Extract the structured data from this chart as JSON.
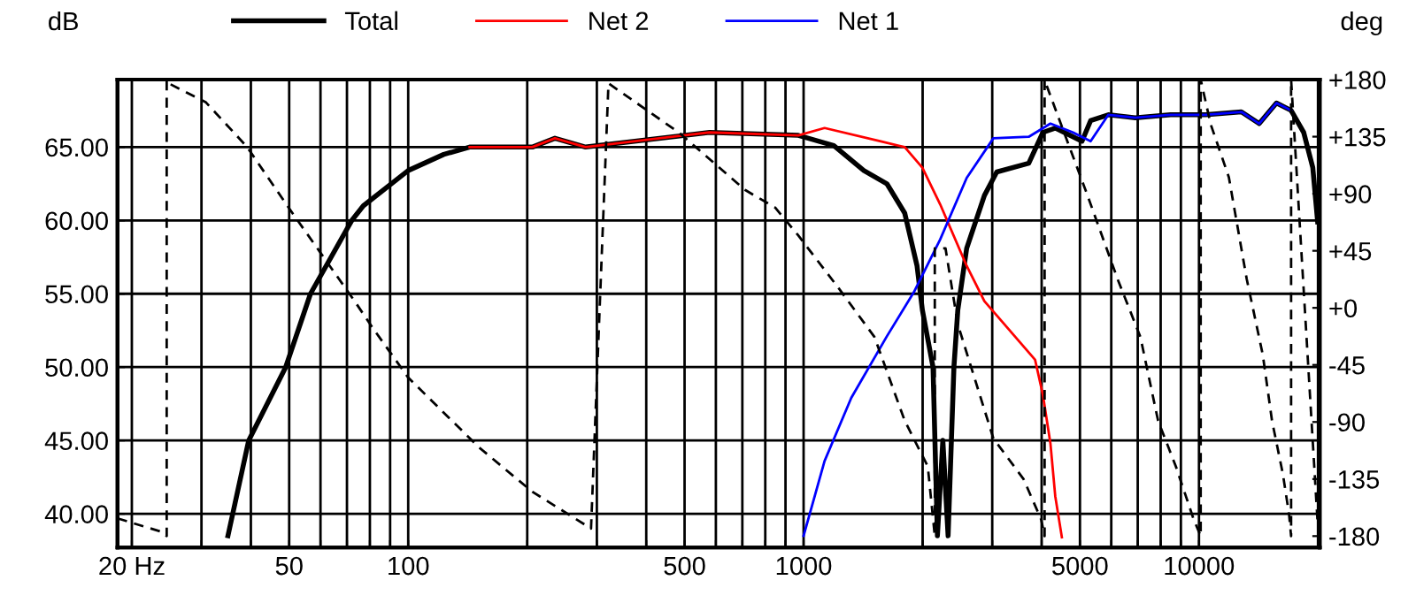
{
  "chart_data": {
    "type": "line",
    "xlabel": null,
    "ylabel": "dB",
    "y2label": "deg",
    "log": "x",
    "grid": true,
    "legend": "top",
    "xlim": [
      18.4,
      20200
    ],
    "xticks": [
      {
        "value": 20,
        "label": "20 Hz"
      },
      {
        "value": 30,
        "label": null
      },
      {
        "value": 40,
        "label": null
      },
      50,
      {
        "value": 60,
        "label": null
      },
      {
        "value": 70,
        "label": null
      },
      {
        "value": 80,
        "label": null
      },
      {
        "value": 90,
        "label": null
      },
      100,
      {
        "value": 200,
        "label": null
      },
      {
        "value": 300,
        "label": null
      },
      {
        "value": 400,
        "label": null
      },
      500,
      {
        "value": 600,
        "label": null
      },
      {
        "value": 700,
        "label": null
      },
      {
        "value": 800,
        "label": null
      },
      {
        "value": 900,
        "label": null
      },
      1000,
      {
        "value": 2000,
        "label": null
      },
      {
        "value": 3000,
        "label": null
      },
      {
        "value": 4000,
        "label": null
      },
      5000,
      {
        "value": 6000,
        "label": null
      },
      {
        "value": 7000,
        "label": null
      },
      {
        "value": 8000,
        "label": null
      },
      {
        "value": 9000,
        "label": null
      },
      10000,
      {
        "value": 20000,
        "label": null
      }
    ],
    "ylim": [
      37.7,
      69.6
    ],
    "yticks": [
      {
        "value": 40,
        "label": "40.00"
      },
      {
        "value": 45,
        "label": "45.00"
      },
      {
        "value": 50,
        "label": "50.00"
      },
      {
        "value": 55,
        "label": "55.00"
      },
      {
        "value": 60,
        "label": "60.00"
      },
      {
        "value": 65,
        "label": "65.00"
      }
    ],
    "y2lim": [
      -189,
      180
    ],
    "y2ticks": [
      {
        "value": 180,
        "label": "+180"
      },
      {
        "value": 135,
        "label": "+135"
      },
      {
        "value": 90,
        "label": "+90"
      },
      {
        "value": 45,
        "label": "+45"
      },
      {
        "value": 0,
        "label": "+0"
      },
      -45,
      -90,
      -135,
      -180
    ],
    "series": [
      {
        "name": "Total",
        "color": "#000000",
        "line_style": "solid",
        "x": [
          35,
          39.5,
          49,
          56.6,
          72,
          77,
          100,
          123,
          143,
          206,
          235,
          281,
          578,
          970,
          1192,
          1420,
          1624,
          1802,
          1936,
          1997,
          2125,
          2180,
          2250,
          2320,
          2400,
          2455,
          2585,
          2866,
          3080,
          3711,
          4030,
          4330,
          5060,
          5320,
          5900,
          6900,
          8480,
          10400,
          12800,
          14200,
          15700,
          17100,
          18400,
          19400,
          19960
        ],
        "values": [
          38.5,
          45,
          50,
          55,
          60,
          61,
          63.4,
          64.5,
          65,
          65,
          65.6,
          65,
          66,
          65.8,
          65.1,
          63.4,
          62.5,
          60.5,
          56.9,
          53.9,
          50,
          38.5,
          45,
          38.5,
          50,
          53.9,
          58.1,
          61.7,
          63.3,
          63.9,
          66,
          66.3,
          65.4,
          66.8,
          67.2,
          67,
          67.2,
          67.2,
          67.4,
          66.6,
          68,
          67.5,
          66,
          63.6,
          59.9
        ]
      },
      {
        "name": "Net 2",
        "color": "#ff0000",
        "line_style": "solid",
        "x": [
          143,
          206,
          235,
          281,
          578,
          970,
          1130,
          1560,
          1802,
          1997,
          2215,
          2585,
          2866,
          3850,
          4030,
          4210,
          4330,
          4500
        ],
        "values": [
          65,
          65,
          65.6,
          65,
          66,
          65.8,
          66.3,
          65.4,
          65,
          63.6,
          61.1,
          56.9,
          54.5,
          50.5,
          48.1,
          44.8,
          41.2,
          38.4
        ]
      },
      {
        "name": "Net 1",
        "color": "#0000ff",
        "line_style": "solid",
        "x": [
          1000,
          1130,
          1320,
          1624,
          1900,
          2215,
          2585,
          3020,
          3711,
          4210,
          4800,
          5320,
          5900,
          6900,
          8480,
          10400,
          12800,
          14200,
          15700,
          17100
        ],
        "values": [
          38.5,
          43.6,
          47.9,
          52.1,
          55.1,
          58.7,
          62.9,
          65.6,
          65.7,
          66.6,
          66,
          65.4,
          67.2,
          67,
          67.2,
          67.2,
          67.4,
          66.6,
          68,
          67.5
        ]
      },
      {
        "color": "#000000",
        "axis": "y2",
        "line_style": "dashed",
        "x": [
          18.4,
          24,
          24.5,
          24.5,
          24.8,
          30.8,
          39.1,
          50.1,
          73.3,
          81.4,
          100,
          151,
          206,
          290,
          321,
          485,
          711,
          848,
          970,
          1230,
          1511,
          1802,
          2061,
          2147,
          2147,
          2285,
          2455,
          3020,
          3600,
          3990,
          4070,
          4070,
          4110,
          5220,
          6220,
          7110,
          7880,
          8740,
          9700,
          10100,
          10100,
          10700,
          11900,
          13200,
          14500,
          15300,
          16300,
          16900,
          17100,
          17100,
          19960
        ],
        "values": [
          -166,
          -177,
          -180,
          180,
          177,
          162,
          127,
          78,
          5,
          -16,
          -55,
          -110,
          -145,
          -174,
          177,
          138,
          93,
          79,
          57,
          15,
          -23,
          -89,
          -125,
          -180,
          47,
          47,
          -13,
          -103,
          -135,
          -167,
          -180,
          180,
          176,
          89,
          23,
          -23,
          -89,
          -125,
          -167,
          -180,
          180,
          145,
          103,
          23,
          -37,
          -89,
          -131,
          -163,
          -180,
          180,
          -170
        ]
      }
    ]
  }
}
